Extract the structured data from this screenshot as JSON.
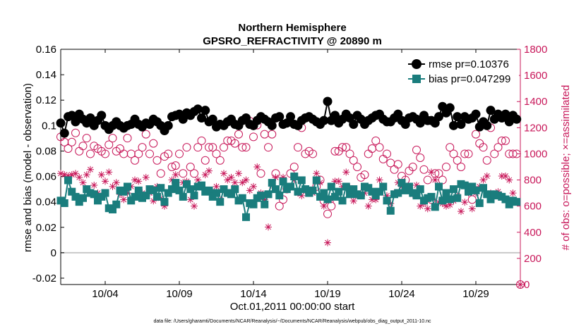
{
  "chart_data": {
    "type": "line",
    "title": "Northern Hemisphere",
    "subtitle": "GPSRO_REFRACTIVITY @ 20890 m",
    "xlabel": "Oct.01,2011 00:00:00 start",
    "ylabel": "rmse and bias (model - observation)",
    "ylabel_right": "# of obs: o=possible; ×=assimilated",
    "footnote": "data file: /Users/gharamti/Documents/NCAR/Reanalysis/~/Documents/NCAR/Reanalysis/webpub/obs_diag_output_2011-10.nc",
    "x_tick_labels": [
      "10/04",
      "10/09",
      "10/14",
      "10/19",
      "10/24",
      "10/29"
    ],
    "x_tick_days": [
      4,
      9,
      14,
      19,
      24,
      29
    ],
    "xlim": [
      1.0,
      32.0
    ],
    "ylim": [
      -0.025,
      0.16
    ],
    "yticks": [
      -0.02,
      0,
      0.02,
      0.04,
      0.06,
      0.08,
      0.1,
      0.12,
      0.14,
      0.16
    ],
    "ytick_labels": [
      "-0.02",
      "0",
      "0.02",
      "0.04",
      "0.06",
      "0.08",
      "0.1",
      "0.12",
      "0.14",
      "0.16"
    ],
    "ylim_right": [
      0,
      1800
    ],
    "yticks_right": [
      0,
      200,
      400,
      600,
      800,
      1000,
      1200,
      1400,
      1600,
      1800
    ],
    "ytick_labels_right": [
      "0",
      "200",
      "400",
      "600",
      "800",
      "1000",
      "1200",
      "1400",
      "1600",
      "1800"
    ],
    "zero_line": 0,
    "legend_position": "top-right",
    "colors": {
      "rmse": "#000000",
      "bias": "#1a7d7d",
      "obs": "#c8185a",
      "axis": "#000000",
      "right_axis": "#c8185a",
      "zero": "#c8c8c8"
    },
    "series": [
      {
        "name": "rmse",
        "legend": "rmse pr=0.10376",
        "axis": "left",
        "marker": "circle",
        "x": [
          1.0,
          1.25,
          1.5,
          1.75,
          2.0,
          2.25,
          2.5,
          2.75,
          3.0,
          3.25,
          3.5,
          3.75,
          4.0,
          4.25,
          4.5,
          4.75,
          5.0,
          5.25,
          5.5,
          5.75,
          6.0,
          6.25,
          6.5,
          6.75,
          7.0,
          7.25,
          7.5,
          7.75,
          8.0,
          8.25,
          8.5,
          8.75,
          9.0,
          9.25,
          9.5,
          9.75,
          10.0,
          10.25,
          10.5,
          10.75,
          11.0,
          11.25,
          11.5,
          11.75,
          12.0,
          12.25,
          12.5,
          12.75,
          13.0,
          13.25,
          13.5,
          13.75,
          14.0,
          14.25,
          14.5,
          14.75,
          15.0,
          15.25,
          15.5,
          15.75,
          16.0,
          16.25,
          16.5,
          16.75,
          17.0,
          17.25,
          17.5,
          17.75,
          18.0,
          18.25,
          18.5,
          18.75,
          19.0,
          19.25,
          19.5,
          19.75,
          20.0,
          20.25,
          20.5,
          20.75,
          21.0,
          21.25,
          21.5,
          21.75,
          22.0,
          22.25,
          22.5,
          22.75,
          23.0,
          23.25,
          23.5,
          23.75,
          24.0,
          24.25,
          24.5,
          24.75,
          25.0,
          25.25,
          25.5,
          25.75,
          26.0,
          26.25,
          26.5,
          26.75,
          27.0,
          27.25,
          27.5,
          27.75,
          28.0,
          28.25,
          28.5,
          28.75,
          29.0,
          29.25,
          29.5,
          29.75,
          30.0,
          30.25,
          30.5,
          30.75,
          31.0,
          31.25,
          31.5,
          31.75
        ],
        "values": [
          0.102,
          0.094,
          0.107,
          0.108,
          0.103,
          0.109,
          0.105,
          0.102,
          0.106,
          0.1,
          0.104,
          0.108,
          0.1,
          0.097,
          0.1,
          0.103,
          0.1,
          0.098,
          0.1,
          0.101,
          0.105,
          0.101,
          0.099,
          0.102,
          0.101,
          0.105,
          0.103,
          0.1,
          0.096,
          0.1,
          0.107,
          0.108,
          0.109,
          0.105,
          0.11,
          0.108,
          0.111,
          0.113,
          0.106,
          0.112,
          0.103,
          0.105,
          0.099,
          0.101,
          0.1,
          0.103,
          0.105,
          0.101,
          0.1,
          0.104,
          0.106,
          0.101,
          0.1,
          0.104,
          0.107,
          0.105,
          0.103,
          0.1,
          0.106,
          0.107,
          0.101,
          0.102,
          0.107,
          0.101,
          0.1,
          0.104,
          0.106,
          0.107,
          0.105,
          0.103,
          0.101,
          0.104,
          0.119,
          0.104,
          0.108,
          0.102,
          0.105,
          0.109,
          0.106,
          0.101,
          0.108,
          0.105,
          0.101,
          0.104,
          0.106,
          0.108,
          0.109,
          0.105,
          0.103,
          0.103,
          0.106,
          0.109,
          0.104,
          0.101,
          0.106,
          0.107,
          0.105,
          0.102,
          0.108,
          0.104,
          0.104,
          0.102,
          0.107,
          0.115,
          0.11,
          0.114,
          0.1,
          0.107,
          0.101,
          0.107,
          0.105,
          0.106,
          0.109,
          0.099,
          0.103,
          0.1,
          0.112,
          0.105,
          0.109,
          0.106,
          0.109,
          0.103,
          0.108,
          0.105
        ]
      },
      {
        "name": "bias",
        "legend": "bias pr=0.047299",
        "axis": "left",
        "marker": "square",
        "x": [
          1.0,
          1.25,
          1.5,
          1.75,
          2.0,
          2.25,
          2.5,
          2.75,
          3.0,
          3.25,
          3.5,
          3.75,
          4.0,
          4.25,
          4.5,
          4.75,
          5.0,
          5.25,
          5.5,
          5.75,
          6.0,
          6.25,
          6.5,
          6.75,
          7.0,
          7.25,
          7.5,
          7.75,
          8.0,
          8.25,
          8.5,
          8.75,
          9.0,
          9.25,
          9.5,
          9.75,
          10.0,
          10.25,
          10.5,
          10.75,
          11.0,
          11.25,
          11.5,
          11.75,
          12.0,
          12.25,
          12.5,
          12.75,
          13.0,
          13.25,
          13.5,
          13.75,
          14.0,
          14.25,
          14.5,
          14.75,
          15.0,
          15.25,
          15.5,
          15.75,
          16.0,
          16.25,
          16.5,
          16.75,
          17.0,
          17.25,
          17.5,
          17.75,
          18.0,
          18.25,
          18.5,
          18.75,
          19.0,
          19.25,
          19.5,
          19.75,
          20.0,
          20.25,
          20.5,
          20.75,
          21.0,
          21.25,
          21.5,
          21.75,
          22.0,
          22.25,
          22.5,
          22.75,
          23.0,
          23.25,
          23.5,
          23.75,
          24.0,
          24.25,
          24.5,
          24.75,
          25.0,
          25.25,
          25.5,
          25.75,
          26.0,
          26.25,
          26.5,
          26.75,
          27.0,
          27.25,
          27.5,
          27.75,
          28.0,
          28.25,
          28.5,
          28.75,
          29.0,
          29.25,
          29.5,
          29.75,
          30.0,
          30.25,
          30.5,
          30.75,
          31.0,
          31.25,
          31.5,
          31.75
        ],
        "values": [
          0.041,
          0.039,
          0.057,
          0.048,
          0.044,
          0.04,
          0.043,
          0.05,
          0.047,
          0.046,
          0.041,
          0.044,
          0.047,
          0.035,
          0.034,
          0.038,
          0.049,
          0.048,
          0.052,
          0.041,
          0.044,
          0.049,
          0.043,
          0.045,
          0.05,
          0.049,
          0.044,
          0.051,
          0.04,
          0.047,
          0.05,
          0.055,
          0.049,
          0.044,
          0.054,
          0.05,
          0.045,
          0.052,
          0.053,
          0.048,
          0.049,
          0.044,
          0.047,
          0.04,
          0.05,
          0.047,
          0.046,
          0.05,
          0.041,
          0.043,
          0.028,
          0.039,
          0.038,
          0.043,
          0.045,
          0.038,
          0.046,
          0.055,
          0.05,
          0.045,
          0.056,
          0.05,
          0.052,
          0.06,
          0.048,
          0.057,
          0.05,
          0.047,
          0.049,
          0.057,
          0.044,
          0.047,
          0.042,
          0.052,
          0.044,
          0.048,
          0.041,
          0.052,
          0.046,
          0.05,
          0.046,
          0.045,
          0.052,
          0.051,
          0.048,
          0.045,
          0.048,
          0.052,
          0.041,
          0.033,
          0.046,
          0.047,
          0.055,
          0.049,
          0.052,
          0.047,
          0.045,
          0.05,
          0.041,
          0.043,
          0.044,
          0.036,
          0.052,
          0.041,
          0.047,
          0.042,
          0.05,
          0.043,
          0.054,
          0.053,
          0.048,
          0.052,
          0.049,
          0.039,
          0.051,
          0.046,
          0.042,
          0.046,
          0.045,
          0.044,
          0.042,
          0.038,
          0.041,
          0.04
        ]
      },
      {
        "name": "possible",
        "legend": "o=possible",
        "axis": "right",
        "marker": "open-circle",
        "x": [
          1.0,
          1.25,
          1.5,
          1.75,
          2.0,
          2.25,
          2.5,
          2.75,
          3.0,
          3.25,
          3.5,
          3.75,
          4.0,
          4.25,
          4.5,
          4.75,
          5.0,
          5.25,
          5.5,
          5.75,
          6.0,
          6.25,
          6.5,
          6.75,
          7.0,
          7.25,
          7.5,
          7.75,
          8.0,
          8.25,
          8.5,
          8.75,
          9.0,
          9.25,
          9.5,
          9.75,
          10.0,
          10.25,
          10.5,
          10.75,
          11.0,
          11.25,
          11.5,
          11.75,
          12.0,
          12.25,
          12.5,
          12.75,
          13.0,
          13.25,
          13.5,
          13.75,
          14.0,
          14.25,
          14.5,
          14.75,
          15.0,
          15.25,
          15.5,
          15.75,
          16.0,
          16.25,
          16.5,
          16.75,
          17.0,
          17.25,
          17.5,
          17.75,
          18.0,
          18.25,
          18.5,
          18.75,
          19.0,
          19.25,
          19.5,
          19.75,
          20.0,
          20.25,
          20.5,
          20.75,
          21.0,
          21.25,
          21.5,
          21.75,
          22.0,
          22.25,
          22.5,
          22.75,
          23.0,
          23.25,
          23.5,
          23.75,
          24.0,
          24.25,
          24.5,
          24.75,
          25.0,
          25.25,
          25.5,
          25.75,
          26.0,
          26.25,
          26.5,
          26.75,
          27.0,
          27.25,
          27.5,
          27.75,
          28.0,
          28.25,
          28.5,
          28.75,
          29.0,
          29.25,
          29.5,
          29.75,
          30.0,
          30.25,
          30.5,
          30.75,
          31.0,
          31.25,
          31.5,
          31.75
        ],
        "values": [
          1130,
          1090,
          1040,
          1090,
          1160,
          1020,
          1060,
          1120,
          1000,
          1060,
          1040,
          1020,
          1000,
          1070,
          1120,
          1020,
          1040,
          1000,
          1120,
          1000,
          950,
          1000,
          1050,
          1150,
          1000,
          1080,
          950,
          850,
          980,
          1000,
          900,
          910,
          1000,
          850,
          1050,
          900,
          850,
          1050,
          1100,
          950,
          1050,
          1050,
          1000,
          950,
          1050,
          1100,
          1100,
          1080,
          1150,
          1050,
          1050,
          1250,
          1130,
          1220,
          850,
          1150,
          1050,
          1150,
          850,
          600,
          650,
          730,
          850,
          900,
          1050,
          1200,
          1000,
          1020,
          1000,
          750,
          800,
          640,
          540,
          600,
          1020,
          1020,
          1050,
          1050,
          1000,
          950,
          900,
          820,
          840,
          1000,
          1040,
          1100,
          1050,
          960,
          1000,
          930,
          880,
          920,
          830,
          800,
          870,
          900,
          1030,
          970,
          880,
          800,
          650,
          850,
          850,
          800,
          900,
          1050,
          1000,
          950,
          900,
          1000,
          1000,
          650,
          1150,
          1080,
          1050,
          950,
          1200,
          1000,
          1050,
          1100,
          1100,
          1000,
          1000,
          1000
        ]
      },
      {
        "name": "assimilated",
        "legend": "×=assimilated",
        "axis": "right",
        "marker": "asterisk",
        "x": [
          1.0,
          1.25,
          1.5,
          1.75,
          2.0,
          2.25,
          2.5,
          2.75,
          3.0,
          3.25,
          3.5,
          3.75,
          4.0,
          4.25,
          4.5,
          4.75,
          5.0,
          5.25,
          5.5,
          5.75,
          6.0,
          6.25,
          6.5,
          6.75,
          7.0,
          7.25,
          7.5,
          7.75,
          8.0,
          8.25,
          8.5,
          8.75,
          9.0,
          9.25,
          9.5,
          9.75,
          10.0,
          10.25,
          10.5,
          10.75,
          11.0,
          11.25,
          11.5,
          11.75,
          12.0,
          12.25,
          12.5,
          12.75,
          13.0,
          13.25,
          13.5,
          13.75,
          14.0,
          14.25,
          14.5,
          14.75,
          15.0,
          15.25,
          15.5,
          15.75,
          16.0,
          16.25,
          16.5,
          16.75,
          17.0,
          17.25,
          17.5,
          17.75,
          18.0,
          18.25,
          18.5,
          18.75,
          19.0,
          19.25,
          19.5,
          19.75,
          20.0,
          20.25,
          20.5,
          20.75,
          21.0,
          21.25,
          21.5,
          21.75,
          22.0,
          22.25,
          22.5,
          22.75,
          23.0,
          23.25,
          23.5,
          23.75,
          24.0,
          24.25,
          24.5,
          24.75,
          25.0,
          25.25,
          25.5,
          25.75,
          26.0,
          26.25,
          26.5,
          26.75,
          27.0,
          27.25,
          27.5,
          27.75,
          28.0,
          28.25,
          28.5,
          28.75,
          29.0,
          29.25,
          29.5,
          29.75,
          30.0,
          30.25,
          30.5,
          30.75,
          31.0,
          31.25,
          31.5,
          31.75
        ],
        "values": [
          850,
          840,
          830,
          840,
          850,
          820,
          780,
          840,
          880,
          760,
          700,
          840,
          790,
          860,
          750,
          780,
          690,
          650,
          700,
          750,
          800,
          790,
          700,
          820,
          700,
          640,
          750,
          660,
          600,
          700,
          800,
          840,
          720,
          780,
          790,
          650,
          600,
          800,
          750,
          840,
          870,
          700,
          750,
          650,
          850,
          800,
          820,
          780,
          850,
          780,
          800,
          720,
          750,
          900,
          700,
          650,
          440,
          760,
          820,
          690,
          820,
          750,
          750,
          800,
          700,
          680,
          720,
          720,
          700,
          850,
          780,
          600,
          320,
          650,
          790,
          790,
          750,
          860,
          740,
          640,
          680,
          700,
          700,
          600,
          650,
          650,
          800,
          750,
          680,
          620,
          700,
          780,
          750,
          720,
          740,
          690,
          760,
          600,
          620,
          580,
          860,
          800,
          630,
          620,
          600,
          610,
          640,
          680,
          560,
          630,
          700,
          580,
          700,
          750,
          800,
          830,
          700,
          690,
          710,
          830,
          830,
          800,
          700,
          640
        ]
      }
    ],
    "right_axis_end_marker": {
      "x": 32.0,
      "value": 0
    }
  }
}
